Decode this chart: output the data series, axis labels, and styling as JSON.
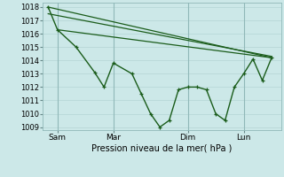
{
  "xlabel": "Pression niveau de la mer( hPa )",
  "bg_color": "#cce8e8",
  "grid_color": "#b8d8d8",
  "line_color": "#1a5c1a",
  "xtick_labels": [
    "Sam",
    "Mar",
    "Dim",
    "Lun"
  ],
  "xtick_positions": [
    0.5,
    3.5,
    7.5,
    10.5
  ],
  "ylim": [
    1008.8,
    1018.3
  ],
  "yticks": [
    1009,
    1010,
    1011,
    1012,
    1013,
    1014,
    1015,
    1016,
    1017,
    1018
  ],
  "xlim": [
    -0.3,
    12.5
  ],
  "series_x": [
    0,
    0.5,
    1.5,
    2.5,
    3.0,
    3.5,
    4.5,
    5.0,
    5.5,
    6.0,
    6.5,
    7.0,
    7.5,
    8.0,
    8.5,
    9.0,
    9.5,
    10.0,
    10.5,
    11.0,
    11.5,
    12.0
  ],
  "series_y": [
    1018.0,
    1016.3,
    1015.0,
    1013.1,
    1012.0,
    1013.8,
    1013.0,
    1011.5,
    1010.0,
    1009.0,
    1009.5,
    1011.8,
    1012.0,
    1012.0,
    1011.8,
    1010.0,
    1009.5,
    1012.0,
    1013.0,
    1014.1,
    1012.5,
    1014.2
  ],
  "trend1_x": [
    0,
    12.0
  ],
  "trend1_y": [
    1018.0,
    1014.2
  ],
  "trend2_x": [
    0,
    12.0
  ],
  "trend2_y": [
    1017.5,
    1014.3
  ],
  "trend3_x": [
    0.5,
    12.0
  ],
  "trend3_y": [
    1016.3,
    1014.2
  ],
  "vline_positions": [
    0.5,
    3.5,
    7.5,
    10.5
  ]
}
